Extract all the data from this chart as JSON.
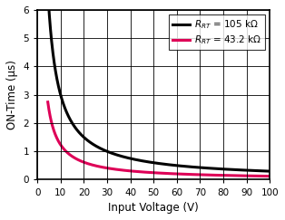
{
  "title": "",
  "xlabel": "Input Voltage (V)",
  "ylabel": "ON-Time (μs)",
  "xlim": [
    0,
    100
  ],
  "ylim": [
    0,
    6
  ],
  "xticks": [
    0,
    10,
    20,
    30,
    40,
    50,
    60,
    70,
    80,
    90,
    100
  ],
  "yticks": [
    0,
    1,
    2,
    3,
    4,
    5,
    6
  ],
  "legend1_label": "$R_{RT}$ = 105 kΩ",
  "legend2_label": "$R_{RT}$ = 43.2 kΩ",
  "color1": "#000000",
  "color2": "#de0057",
  "R1": 105000,
  "R2": 43200,
  "k_scale": 0.0003,
  "V_start": 4.5,
  "V_end": 100,
  "linewidth": 2.2,
  "xlabel_fontsize": 8.5,
  "ylabel_fontsize": 8.5,
  "tick_fontsize": 7.5,
  "legend_fontsize": 7.5,
  "bg_color": "#f0f0f0",
  "grid_color": "#000000",
  "grid_alpha": 1.0,
  "grid_lw": 0.6
}
